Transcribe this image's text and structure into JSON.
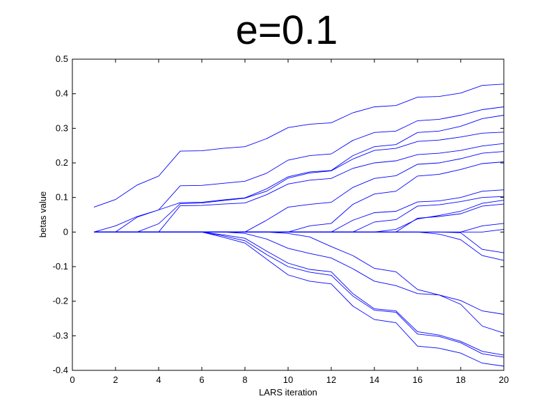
{
  "chart_data": {
    "type": "line",
    "title": "e=0.1",
    "xlabel": "LARS iteration",
    "ylabel": "betas value",
    "xlim": [
      0,
      20
    ],
    "ylim": [
      -0.4,
      0.5
    ],
    "xticks": [
      0,
      2,
      4,
      6,
      8,
      10,
      12,
      14,
      16,
      18,
      20
    ],
    "xtick_labels": [
      "0",
      "2",
      "4",
      "6",
      "8",
      "10",
      "12",
      "14",
      "16",
      "18",
      "20"
    ],
    "yticks": [
      -0.4,
      -0.3,
      -0.2,
      -0.1,
      0,
      0.1,
      0.2,
      0.3,
      0.4,
      0.5
    ],
    "ytick_labels": [
      "-0.4",
      "-0.3",
      "-0.2",
      "-0.1",
      "0",
      "0.1",
      "0.2",
      "0.3",
      "0.4",
      "0.5"
    ],
    "grid": false,
    "line_color": "#0000ff",
    "x": [
      1,
      2,
      3,
      4,
      5,
      6,
      7,
      8,
      9,
      10,
      11,
      12,
      13,
      14,
      15,
      16,
      17,
      18,
      19,
      20
    ],
    "series": [
      {
        "values": [
          0.072,
          0.094,
          0.136,
          0.162,
          0.234,
          0.235,
          0.242,
          0.247,
          0.27,
          0.302,
          0.312,
          0.316,
          0.345,
          0.362,
          0.366,
          0.39,
          0.392,
          0.402,
          0.424,
          0.428
        ]
      },
      {
        "values": [
          0,
          0.018,
          0.045,
          0.064,
          0.134,
          0.135,
          0.141,
          0.147,
          0.17,
          0.208,
          0.221,
          0.226,
          0.265,
          0.288,
          0.292,
          0.322,
          0.326,
          0.338,
          0.354,
          0.362
        ]
      },
      {
        "values": [
          0,
          0,
          0.043,
          0.064,
          0.085,
          0.086,
          0.093,
          0.099,
          0.125,
          0.16,
          0.174,
          0.178,
          0.221,
          0.247,
          0.253,
          0.288,
          0.292,
          0.306,
          0.328,
          0.338
        ]
      },
      {
        "values": [
          0,
          0,
          0,
          0.024,
          0.082,
          0.084,
          0.091,
          0.098,
          0.118,
          0.156,
          0.171,
          0.177,
          0.211,
          0.236,
          0.242,
          0.262,
          0.266,
          0.275,
          0.286,
          0.289
        ]
      },
      {
        "values": [
          0,
          0,
          0,
          0,
          0.076,
          0.077,
          0.081,
          0.084,
          0.108,
          0.139,
          0.15,
          0.155,
          0.184,
          0.2,
          0.206,
          0.224,
          0.228,
          0.236,
          0.249,
          0.256
        ]
      },
      {
        "values": [
          0,
          0,
          0,
          0,
          0,
          0,
          0,
          0,
          0.034,
          0.072,
          0.08,
          0.086,
          0.129,
          0.155,
          0.163,
          0.196,
          0.2,
          0.212,
          0.228,
          0.233
        ]
      },
      {
        "values": [
          0,
          0,
          0,
          0,
          0,
          0,
          0,
          0,
          0,
          0,
          0.018,
          0.025,
          0.08,
          0.11,
          0.118,
          0.162,
          0.167,
          0.181,
          0.198,
          0.203
        ]
      },
      {
        "values": [
          0,
          0,
          0,
          0,
          0,
          0,
          0,
          0,
          0,
          0,
          0,
          0,
          0.034,
          0.056,
          0.06,
          0.087,
          0.09,
          0.1,
          0.118,
          0.122
        ]
      },
      {
        "values": [
          0,
          0,
          0,
          0,
          0,
          0,
          0,
          0,
          0,
          0,
          0,
          0,
          0,
          0.029,
          0.036,
          0.075,
          0.079,
          0.088,
          0.1,
          0.103
        ]
      },
      {
        "values": [
          0,
          0,
          0,
          0,
          0,
          0,
          0,
          0,
          0,
          0,
          0,
          0,
          0,
          0,
          0.008,
          0.038,
          0.048,
          0.06,
          0.083,
          0.092
        ]
      },
      {
        "values": [
          0,
          0,
          0,
          0,
          0,
          0,
          0,
          0,
          0,
          0,
          0,
          0,
          0,
          0,
          0,
          0.04,
          0.045,
          0.053,
          0.075,
          0.081
        ]
      },
      {
        "values": [
          0,
          0,
          0,
          0,
          0,
          0,
          0,
          0,
          0,
          0,
          0,
          0,
          0,
          0,
          0,
          0,
          0,
          0,
          0.018,
          0.025
        ]
      },
      {
        "values": [
          0,
          0,
          0,
          0,
          0,
          0,
          0,
          0,
          0,
          0,
          0,
          0,
          0,
          0,
          0,
          0,
          0,
          0,
          0,
          0.008
        ]
      },
      {
        "values": [
          0,
          0,
          0,
          0,
          0,
          0,
          0,
          -0.004,
          -0.02,
          -0.047,
          -0.062,
          -0.075,
          -0.106,
          -0.142,
          -0.155,
          -0.178,
          -0.182,
          -0.198,
          -0.228,
          -0.238
        ]
      },
      {
        "values": [
          0,
          0,
          0,
          0,
          0,
          0,
          0,
          0,
          0,
          -0.004,
          -0.014,
          -0.042,
          -0.068,
          -0.105,
          -0.115,
          -0.166,
          -0.182,
          -0.209,
          -0.272,
          -0.292
        ]
      },
      {
        "values": [
          0,
          0,
          0,
          0,
          0,
          0,
          -0.008,
          -0.018,
          -0.055,
          -0.09,
          -0.108,
          -0.115,
          -0.178,
          -0.222,
          -0.228,
          -0.288,
          -0.298,
          -0.316,
          -0.345,
          -0.356
        ]
      },
      {
        "values": [
          0,
          0,
          0,
          0,
          0,
          0,
          -0.011,
          -0.025,
          -0.065,
          -0.1,
          -0.116,
          -0.125,
          -0.185,
          -0.226,
          -0.232,
          -0.295,
          -0.302,
          -0.32,
          -0.352,
          -0.362
        ]
      },
      {
        "values": [
          0,
          0,
          0,
          0,
          0,
          0,
          -0.015,
          -0.032,
          -0.078,
          -0.124,
          -0.142,
          -0.15,
          -0.214,
          -0.253,
          -0.262,
          -0.33,
          -0.336,
          -0.35,
          -0.379,
          -0.388
        ]
      },
      {
        "values": [
          0,
          0,
          0,
          0,
          0,
          0,
          0,
          0,
          0,
          0,
          0,
          0,
          0,
          0,
          0,
          0,
          0,
          -0.002,
          -0.05,
          -0.06
        ]
      },
      {
        "values": [
          0,
          0,
          0,
          0,
          0,
          0,
          0,
          0,
          0,
          0,
          0,
          0,
          0,
          0,
          0,
          0,
          -0.006,
          -0.022,
          -0.068,
          -0.082
        ]
      }
    ]
  }
}
